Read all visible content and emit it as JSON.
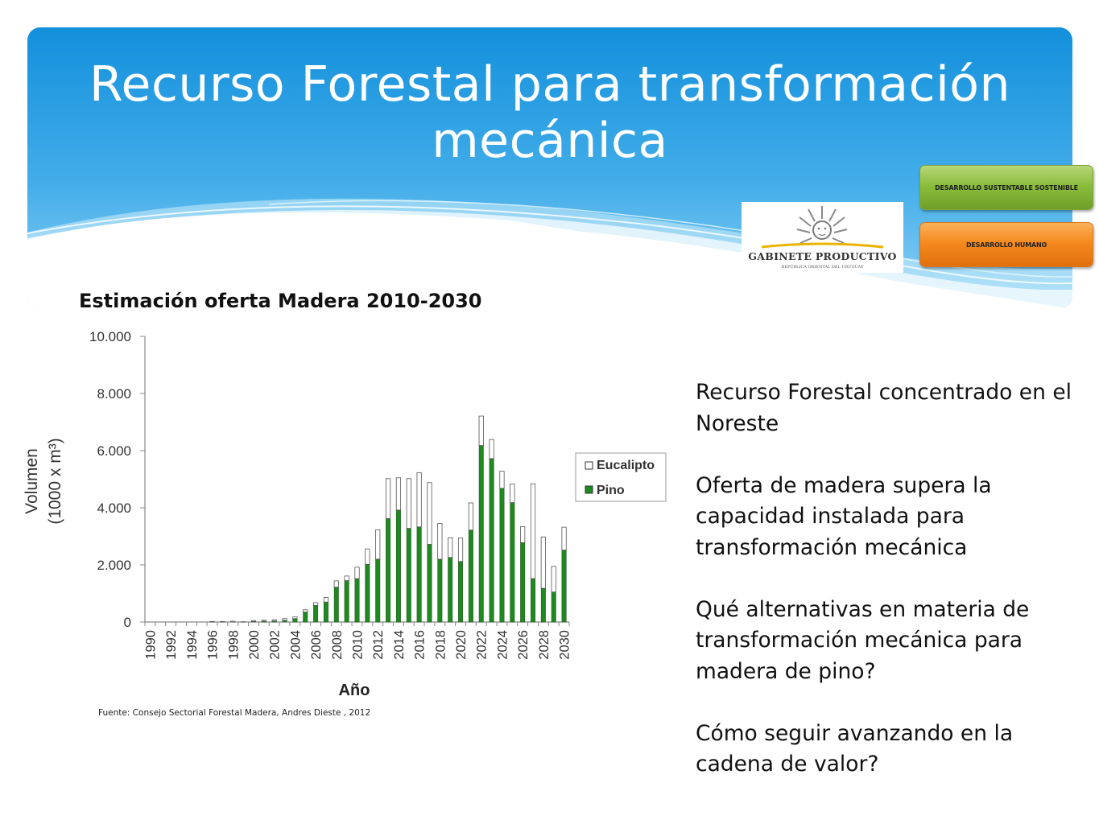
{
  "slide": {
    "title": "Recurso Forestal para transformación mecánica"
  },
  "badges": {
    "green_label": "DESARROLLO SUSTENTABLE SOSTENIBLE",
    "orange_label": "DESARROLLO HUMANO",
    "green_color": "#8bbd3c",
    "orange_color": "#f58a1f"
  },
  "logo": {
    "name": "GABINETE PRODUCTIVO",
    "subtitle": "REPÚBLICA ORIENTAL DEL URUGUAY",
    "icon": "sun-of-may-icon"
  },
  "chart_heading": "Estimación oferta Madera 2010-2030",
  "chart_data": {
    "type": "bar",
    "stacked": true,
    "x": [
      1990,
      1991,
      1992,
      1993,
      1994,
      1995,
      1996,
      1997,
      1998,
      1999,
      2000,
      2001,
      2002,
      2003,
      2004,
      2005,
      2006,
      2007,
      2008,
      2009,
      2010,
      2011,
      2012,
      2013,
      2014,
      2015,
      2016,
      2017,
      2018,
      2019,
      2020,
      2021,
      2022,
      2023,
      2024,
      2025,
      2026,
      2027,
      2028,
      2029,
      2030
    ],
    "x_tick_labels": [
      "1990",
      "1992",
      "1994",
      "1996",
      "1998",
      "2000",
      "2002",
      "2004",
      "2006",
      "2008",
      "2010",
      "2012",
      "2014",
      "2016",
      "2018",
      "2020",
      "2022",
      "2024",
      "2026",
      "2028",
      "2030"
    ],
    "series": [
      {
        "name": "Pino",
        "color": "#1e8a1e",
        "values": [
          0,
          0,
          0,
          0,
          0,
          0,
          0,
          0,
          0,
          0,
          20,
          30,
          40,
          60,
          120,
          350,
          580,
          700,
          1220,
          1450,
          1520,
          2020,
          2200,
          3620,
          3920,
          3280,
          3330,
          2720,
          2200,
          2260,
          2120,
          3220,
          6180,
          5720,
          4680,
          4180,
          2780,
          1520,
          1180,
          1050,
          2520
        ]
      },
      {
        "name": "Eucalipto",
        "color": "#ffffff",
        "values": [
          0,
          0,
          0,
          0,
          0,
          0,
          20,
          20,
          30,
          10,
          30,
          30,
          40,
          60,
          60,
          80,
          100,
          160,
          220,
          160,
          400,
          540,
          1030,
          1400,
          1130,
          1740,
          1900,
          2160,
          1250,
          690,
          820,
          950,
          1030,
          670,
          600,
          650,
          560,
          3320,
          1800,
          900,
          800
        ]
      }
    ],
    "xlabel": "Año",
    "ylabel_line1": "Volumen",
    "ylabel_line2": "(1000 x m³)",
    "ylim": [
      0,
      10000
    ],
    "y_ticks": [
      0,
      2000,
      4000,
      6000,
      8000,
      10000
    ],
    "y_tick_labels": [
      "0",
      "2.000",
      "4.000",
      "6.000",
      "8.000",
      "10.000"
    ],
    "legend_labels": [
      "Eucalipto",
      "Pino"
    ],
    "legend_position": "right",
    "grid": false
  },
  "source_note": "Fuente: Consejo Sectorial Forestal Madera,  Andres Dieste , 2012",
  "bullets": [
    "Recurso Forestal concentrado en el Noreste",
    "Oferta de madera supera la capacidad instalada para transformación mecánica",
    "Qué alternativas en materia de transformación mecánica para madera de  pino?",
    "Cómo seguir avanzando en la cadena de valor?"
  ]
}
